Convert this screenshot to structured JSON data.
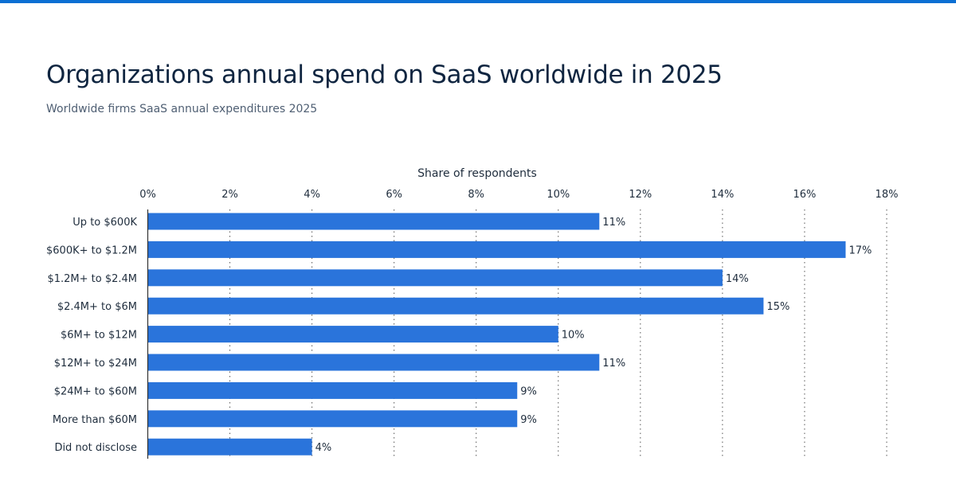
{
  "title": "Organizations annual spend on SaaS worldwide in 2025",
  "subtitle": "Worldwide firms SaaS annual expenditures 2025",
  "colors": {
    "accent": "#0b6fd3",
    "bar": "#2a74db",
    "title": "#0f2540"
  },
  "chart_data": {
    "type": "bar",
    "orientation": "horizontal",
    "title": "Organizations annual spend on SaaS worldwide in 2025",
    "xlabel": "Share of respondents",
    "ylabel": "",
    "xlim": [
      0,
      18
    ],
    "x_ticks": [
      "0%",
      "2%",
      "4%",
      "6%",
      "8%",
      "10%",
      "12%",
      "14%",
      "16%",
      "18%"
    ],
    "axis_position": "top",
    "grid": "vertical dotted",
    "categories": [
      "Up to $600K",
      "$600K+ to $1.2M",
      "$1.2M+ to $2.4M",
      "$2.4M+ to $6M",
      "$6M+ to $12M",
      "$12M+ to $24M",
      "$24M+ to $60M",
      "More than $60M",
      "Did not disclose"
    ],
    "values": [
      11,
      17,
      14,
      15,
      10,
      11,
      9,
      9,
      4
    ],
    "data_labels": [
      "11%",
      "17%",
      "14%",
      "15%",
      "10%",
      "11%",
      "9%",
      "9%",
      "4%"
    ]
  }
}
